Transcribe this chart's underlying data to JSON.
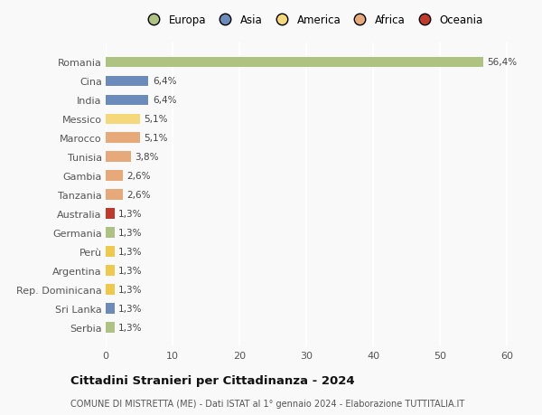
{
  "countries": [
    "Romania",
    "Cina",
    "India",
    "Messico",
    "Marocco",
    "Tunisia",
    "Gambia",
    "Tanzania",
    "Australia",
    "Germania",
    "Perù",
    "Argentina",
    "Rep. Dominicana",
    "Sri Lanka",
    "Serbia"
  ],
  "values": [
    56.4,
    6.4,
    6.4,
    5.1,
    5.1,
    3.8,
    2.6,
    2.6,
    1.3,
    1.3,
    1.3,
    1.3,
    1.3,
    1.3,
    1.3
  ],
  "labels": [
    "56,4%",
    "6,4%",
    "6,4%",
    "5,1%",
    "5,1%",
    "3,8%",
    "2,6%",
    "2,6%",
    "1,3%",
    "1,3%",
    "1,3%",
    "1,3%",
    "1,3%",
    "1,3%",
    "1,3%"
  ],
  "colors": [
    "#aec282",
    "#6b8cba",
    "#6b8cba",
    "#f5d87a",
    "#e8a97a",
    "#e8a97a",
    "#e8a97a",
    "#e8a97a",
    "#c0392b",
    "#aec282",
    "#f0c84a",
    "#f0c84a",
    "#f0c84a",
    "#6b8cba",
    "#aec282"
  ],
  "continents": [
    "Europa",
    "Asia",
    "America",
    "Africa",
    "Oceania"
  ],
  "continent_colors": [
    "#aec282",
    "#6b8cba",
    "#f5d87a",
    "#e8a97a",
    "#c0392b"
  ],
  "title": "Cittadini Stranieri per Cittadinanza - 2024",
  "subtitle": "COMUNE DI MISTRETTA (ME) - Dati ISTAT al 1° gennaio 2024 - Elaborazione TUTTITALIA.IT",
  "xlim": [
    0,
    62
  ],
  "xticks": [
    0,
    10,
    20,
    30,
    40,
    50,
    60
  ],
  "bg_color": "#f9f9f9",
  "grid_color": "#ffffff",
  "bar_height": 0.55
}
